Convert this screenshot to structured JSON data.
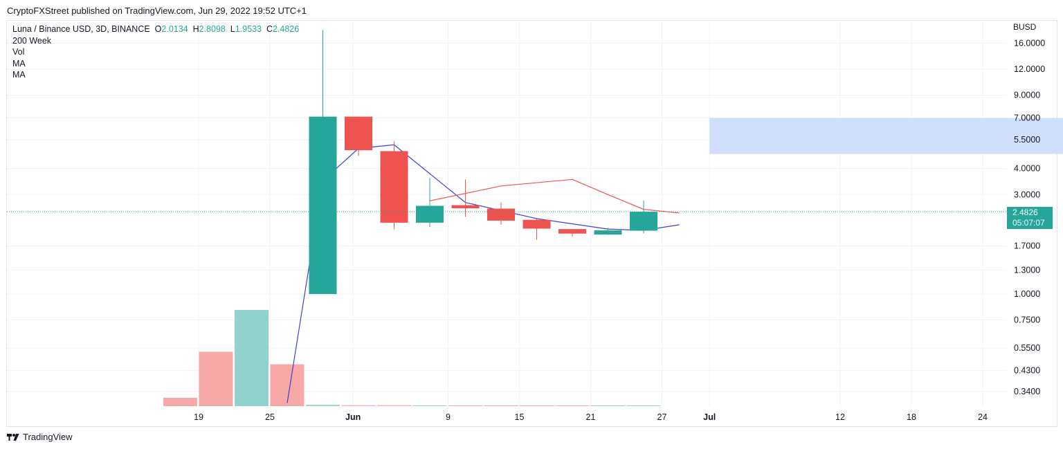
{
  "header": {
    "publisher": "CryptoFXStreet published on TradingView.com, Jun 29, 2022 19:52 UTC+1"
  },
  "legend": {
    "symbol": "Luna / Binance USD, 3D, BINANCE",
    "o_label": "O",
    "o_value": "2.0134",
    "h_label": "H",
    "h_value": "2.8098",
    "l_label": "L",
    "l_value": "1.9533",
    "c_label": "C",
    "c_value": "2.4826",
    "indicators": [
      "200 Week",
      "Vol",
      "MA",
      "MA"
    ]
  },
  "price_axis": {
    "currency": "BUSD",
    "last_price": "2.4826",
    "countdown": "05:07:07"
  },
  "footer": {
    "brand": "TradingView"
  },
  "colors": {
    "up": "#26a69a",
    "down": "#ef5350",
    "vol_up": "#92d2cc",
    "vol_down": "#f7a9a7",
    "ma_blue": "#3f3fd9",
    "ma_red": "#f0524f",
    "zone": "#d0dcfd",
    "grid": "#f0f3fa"
  },
  "chart_data": {
    "type": "candlestick",
    "scale": "log",
    "ylim": [
      0.3,
      18.5
    ],
    "y_ticks": [
      "16.0000",
      "12.0000",
      "9.0000",
      "7.0000",
      "5.5000",
      "4.0000",
      "3.0000",
      "1.7000",
      "1.3000",
      "1.0000",
      "0.7500",
      "0.5500",
      "0.4300",
      "0.3400"
    ],
    "x_ticks": [
      "19",
      "25",
      "Jun",
      "9",
      "15",
      "21",
      "27",
      "Jul",
      "12",
      "18",
      "24"
    ],
    "candles": [
      {
        "date": "2022-05-28",
        "open": 1.0,
        "high": 18.5,
        "low": 1.0,
        "close": 7.1
      },
      {
        "date": "2022-05-31",
        "open": 7.1,
        "high": 7.1,
        "low": 4.6,
        "close": 4.9
      },
      {
        "date": "2022-06-03",
        "open": 4.85,
        "high": 5.4,
        "low": 2.05,
        "close": 2.2
      },
      {
        "date": "2022-06-06",
        "open": 2.2,
        "high": 3.6,
        "low": 2.1,
        "close": 2.65
      },
      {
        "date": "2022-06-09",
        "open": 2.67,
        "high": 3.55,
        "low": 2.35,
        "close": 2.58
      },
      {
        "date": "2022-06-12",
        "open": 2.57,
        "high": 2.75,
        "low": 2.15,
        "close": 2.25
      },
      {
        "date": "2022-06-15",
        "open": 2.27,
        "high": 2.3,
        "low": 1.82,
        "close": 2.06
      },
      {
        "date": "2022-06-18",
        "open": 2.05,
        "high": 2.05,
        "low": 1.88,
        "close": 1.95
      },
      {
        "date": "2022-06-21",
        "open": 1.93,
        "high": 2.08,
        "low": 1.92,
        "close": 2.02
      },
      {
        "date": "2022-06-24",
        "open": 2.0134,
        "high": 2.8098,
        "low": 1.9533,
        "close": 2.4826
      }
    ],
    "volume": [
      {
        "date": "2022-05-16",
        "value": 0.04,
        "direction": "down"
      },
      {
        "date": "2022-05-19",
        "value": 0.26,
        "direction": "down"
      },
      {
        "date": "2022-05-22",
        "value": 0.46,
        "direction": "up"
      },
      {
        "date": "2022-05-25",
        "value": 0.2,
        "direction": "down"
      },
      {
        "date": "2022-05-28",
        "value": 0.006,
        "direction": "up"
      },
      {
        "date": "2022-05-31",
        "value": 0.004,
        "direction": "down"
      },
      {
        "date": "2022-06-03",
        "value": 0.004,
        "direction": "down"
      },
      {
        "date": "2022-06-06",
        "value": 0.003,
        "direction": "up"
      },
      {
        "date": "2022-06-09",
        "value": 0.003,
        "direction": "down"
      },
      {
        "date": "2022-06-12",
        "value": 0.003,
        "direction": "down"
      },
      {
        "date": "2022-06-15",
        "value": 0.003,
        "direction": "down"
      },
      {
        "date": "2022-06-18",
        "value": 0.003,
        "direction": "down"
      },
      {
        "date": "2022-06-21",
        "value": 0.003,
        "direction": "up"
      },
      {
        "date": "2022-06-24",
        "value": 0.003,
        "direction": "up"
      }
    ],
    "ma_blue": [
      {
        "date": "2022-05-25",
        "value": 0.3
      },
      {
        "date": "2022-05-28",
        "value": 3.5
      },
      {
        "date": "2022-05-31",
        "value": 5.0
      },
      {
        "date": "2022-06-03",
        "value": 5.2
      },
      {
        "date": "2022-06-09",
        "value": 2.75
      },
      {
        "date": "2022-06-15",
        "value": 2.3
      },
      {
        "date": "2022-06-21",
        "value": 2.05
      },
      {
        "date": "2022-06-24",
        "value": 2.02
      },
      {
        "date": "2022-06-27",
        "value": 2.15
      }
    ],
    "ma_red": [
      {
        "date": "2022-06-06",
        "value": 2.8
      },
      {
        "date": "2022-06-12",
        "value": 3.3
      },
      {
        "date": "2022-06-18",
        "value": 3.55
      },
      {
        "date": "2022-06-21",
        "value": 3.0
      },
      {
        "date": "2022-06-24",
        "value": 2.55
      },
      {
        "date": "2022-06-27",
        "value": 2.45
      }
    ],
    "zone": {
      "start": "2022-07-01",
      "end": "2022-08-05",
      "low": 4.7,
      "high": 7.0
    },
    "last_price": 2.4826
  }
}
